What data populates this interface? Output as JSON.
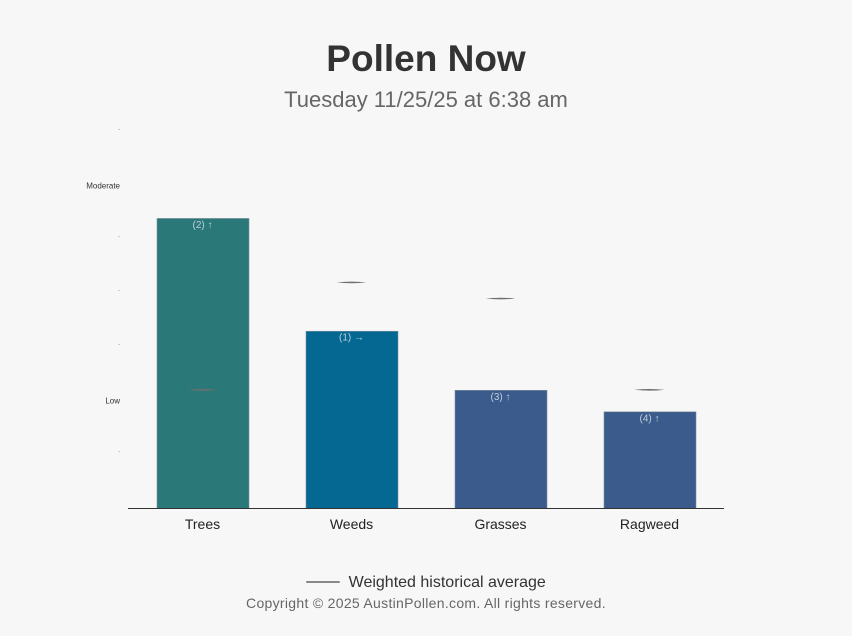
{
  "title": "Pollen Now",
  "subtitle": "Tuesday 11/25/25 at 6:38 am",
  "legend": {
    "label": "Weighted historical average"
  },
  "copyright": "Copyright © 2025 AustinPollen.com.  All rights reserved.",
  "chart_data": {
    "type": "bar",
    "categories": [
      "Trees",
      "Weeds",
      "Grasses",
      "Ragweed"
    ],
    "values": [
      5.4,
      3.3,
      2.2,
      1.8
    ],
    "bar_labels": [
      "(2) ↑",
      "(1) →",
      "(3) ↑",
      "(4) ↑"
    ],
    "colors": [
      "#2a7878",
      "#046892",
      "#3b5b8c",
      "#3b5b8c"
    ],
    "historical_average": [
      2.2,
      4.2,
      3.9,
      2.2
    ],
    "y_axis": {
      "ticks": [
        {
          "value": 0,
          "label": ""
        },
        {
          "value": 1,
          "label": "-"
        },
        {
          "value": 2,
          "label": "Low"
        },
        {
          "value": 3,
          "label": "-"
        },
        {
          "value": 4,
          "label": "-"
        },
        {
          "value": 5,
          "label": "-"
        },
        {
          "value": 6,
          "label": "Moderate"
        },
        {
          "value": 7,
          "label": "-"
        }
      ]
    },
    "ylim": [
      0,
      7
    ],
    "grid": false,
    "legend_position": "bottom"
  }
}
